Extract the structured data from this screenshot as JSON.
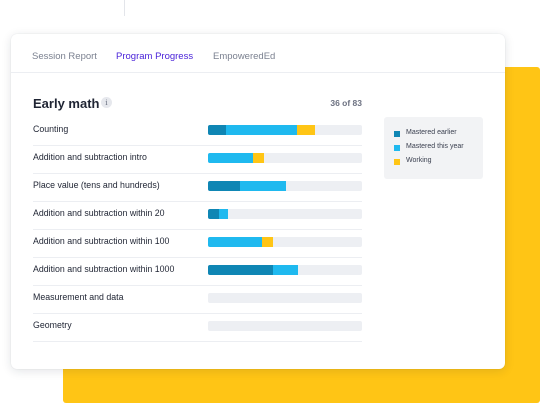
{
  "tabs": [
    {
      "label": "Session Report",
      "active": false
    },
    {
      "label": "Program Progress",
      "active": true
    },
    {
      "label": "EmpoweredEd",
      "active": false
    }
  ],
  "section": {
    "title": "Early math",
    "info_icon": "i",
    "count": "36 of 83"
  },
  "colors": {
    "mastered_earlier": "#0f86b4",
    "mastered_this_year": "#1fb9ef",
    "working": "#ffc515",
    "accent": "#4a23d9",
    "backdrop": "#ffc515"
  },
  "legend": [
    {
      "label": "Mastered earlier",
      "key": "earlier"
    },
    {
      "label": "Mastered this year",
      "key": "thisyear"
    },
    {
      "label": "Working",
      "key": "working"
    }
  ],
  "skills": [
    {
      "label": "Counting",
      "earlier": 0.12,
      "thisyear": 0.46,
      "working": 0.12
    },
    {
      "label": "Addition and subtraction intro",
      "earlier": 0.0,
      "thisyear": 0.29,
      "working": 0.07
    },
    {
      "label": "Place value (tens and hundreds)",
      "earlier": 0.21,
      "thisyear": 0.3,
      "working": 0.0
    },
    {
      "label": "Addition and subtraction within 20",
      "earlier": 0.07,
      "thisyear": 0.06,
      "working": 0.0
    },
    {
      "label": "Addition and subtraction within 100",
      "earlier": 0.0,
      "thisyear": 0.35,
      "working": 0.07
    },
    {
      "label": "Addition and subtraction within 1000",
      "earlier": 0.42,
      "thisyear": 0.16,
      "working": 0.0
    },
    {
      "label": "Measurement and data",
      "earlier": 0.0,
      "thisyear": 0.0,
      "working": 0.0
    },
    {
      "label": "Geometry",
      "earlier": 0.0,
      "thisyear": 0.0,
      "working": 0.0
    }
  ]
}
